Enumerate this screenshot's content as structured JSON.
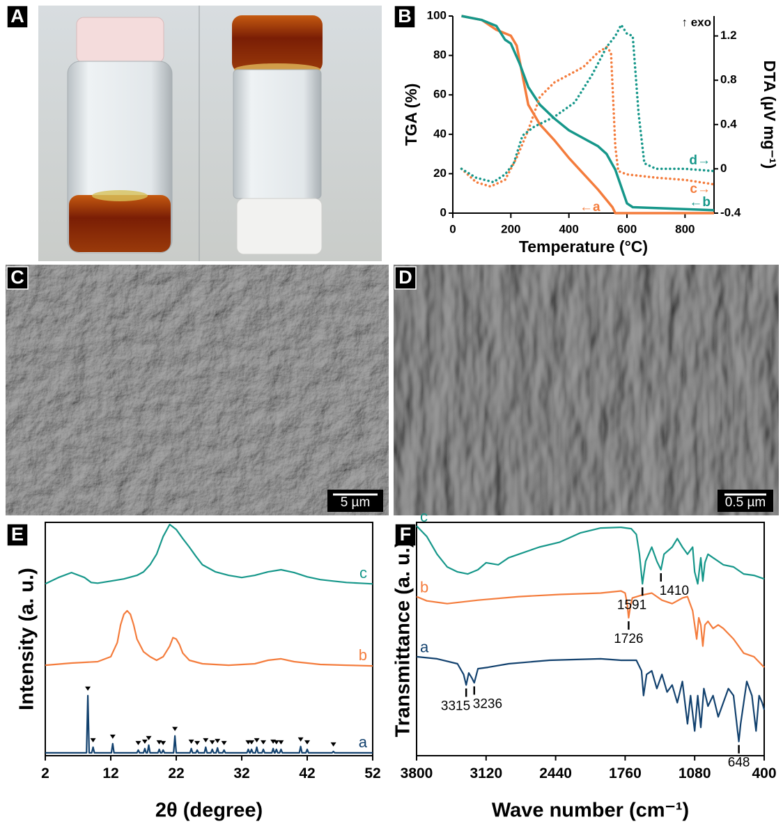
{
  "panels": [
    {
      "label": "A"
    },
    {
      "label": "C",
      "scale_bar": "5 µm"
    },
    {
      "label": "D",
      "scale_bar": "0.5 µm"
    }
  ],
  "chart_data": [
    {
      "type": "line",
      "panel_label": "B",
      "xlabel": "Temperature (°C)",
      "ylabel": "TGA (%)",
      "y2label": "DTA (µV mg⁻¹)",
      "annotation": "↑ exo",
      "xlim": [
        0,
        900
      ],
      "xticks": [
        0,
        200,
        400,
        600,
        800
      ],
      "ylim": [
        0,
        100
      ],
      "yticks": [
        0,
        20,
        40,
        60,
        80,
        100
      ],
      "y2lim": [
        -0.4,
        1.38
      ],
      "y2ticks": [
        -0.4,
        0,
        0.4,
        0.8,
        1.2
      ],
      "series": [
        {
          "name": "←a",
          "color": "#f47c3c",
          "x": [
            30,
            100,
            150,
            200,
            220,
            240,
            260,
            300,
            350,
            400,
            450,
            500,
            550,
            560,
            900
          ],
          "values": [
            100,
            98,
            93,
            90,
            85,
            70,
            55,
            45,
            37,
            28,
            20,
            12,
            3,
            0,
            0
          ]
        },
        {
          "name": "←b",
          "color": "#16978a",
          "x": [
            30,
            100,
            150,
            180,
            200,
            230,
            260,
            300,
            350,
            400,
            450,
            500,
            530,
            560,
            600,
            620,
            900
          ],
          "values": [
            100,
            98,
            95,
            88,
            86,
            76,
            64,
            55,
            48,
            42,
            38,
            34,
            30,
            22,
            5,
            3,
            1.5
          ]
        },
        {
          "name": "c→",
          "color": "#f47c3c",
          "axis": "y2",
          "dash": "dotted",
          "x": [
            30,
            80,
            130,
            180,
            220,
            260,
            300,
            350,
            400,
            450,
            500,
            530,
            545,
            560,
            570,
            600,
            700,
            800,
            900
          ],
          "values": [
            0,
            -0.12,
            -0.16,
            -0.1,
            0.1,
            0.35,
            0.65,
            0.78,
            0.85,
            0.92,
            1.05,
            1.1,
            1.05,
            0.2,
            -0.02,
            -0.05,
            -0.08,
            -0.1,
            -0.14
          ]
        },
        {
          "name": "d→",
          "color": "#16978a",
          "axis": "y2",
          "dash": "dotted",
          "x": [
            30,
            80,
            140,
            180,
            210,
            240,
            280,
            350,
            420,
            480,
            530,
            560,
            580,
            600,
            620,
            640,
            660,
            700,
            800,
            900
          ],
          "values": [
            0,
            -0.08,
            -0.12,
            -0.05,
            0.05,
            0.3,
            0.38,
            0.47,
            0.6,
            0.85,
            1.1,
            1.2,
            1.3,
            1.22,
            1.2,
            0.5,
            0.05,
            0,
            0,
            -0.02
          ]
        }
      ]
    },
    {
      "type": "line",
      "panel_label": "E",
      "xlabel": "2θ (degree)",
      "ylabel": "Intensity (a. u.)",
      "xlim": [
        2,
        52
      ],
      "xticks": [
        2,
        12,
        22,
        32,
        42,
        52
      ],
      "ylim": [
        0,
        330
      ],
      "series": [
        {
          "name": "a",
          "color": "#12416e",
          "x": [
            2,
            8.3,
            8.5,
            8.7,
            9.1,
            9.3,
            9.5,
            12.1,
            12.3,
            12.5,
            16,
            16.2,
            16.4,
            17,
            17.2,
            17.4,
            17.6,
            17.8,
            18,
            19.2,
            19.4,
            19.6,
            19.8,
            20,
            20.2,
            21.6,
            21.8,
            22,
            24.1,
            24.3,
            24.5,
            25,
            25.2,
            25.4,
            26.3,
            26.5,
            26.7,
            27.3,
            27.5,
            27.7,
            28.1,
            28.3,
            28.5,
            29.1,
            29.3,
            29.5,
            32.8,
            33,
            33.2,
            33.3,
            33.5,
            33.7,
            34.1,
            34.3,
            34.5,
            35.1,
            35.3,
            35.5,
            36.6,
            36.8,
            37,
            37.1,
            37.3,
            37.5,
            37.8,
            38,
            38.2,
            40.8,
            41,
            41.2,
            41.8,
            42,
            42.2,
            45.8,
            46,
            46.2,
            52
          ],
          "values": [
            4,
            4,
            85,
            4,
            4,
            12,
            4,
            4,
            17,
            4,
            4,
            8,
            4,
            4,
            10,
            4,
            4,
            15,
            4,
            4,
            9,
            4,
            4,
            8,
            4,
            4,
            28,
            4,
            4,
            10,
            4,
            4,
            8,
            4,
            4,
            12,
            4,
            4,
            9,
            4,
            4,
            11,
            4,
            4,
            8,
            4,
            4,
            9,
            4,
            4,
            9,
            4,
            4,
            12,
            4,
            4,
            9,
            4,
            4,
            10,
            4,
            4,
            9,
            4,
            4,
            9,
            4,
            4,
            13,
            4,
            4,
            9,
            4,
            4,
            6,
            4,
            4
          ],
          "peak_markers": [
            8.5,
            9.3,
            12.3,
            16.2,
            17.2,
            17.8,
            19.4,
            20,
            21.8,
            24.3,
            25.2,
            26.5,
            27.5,
            28.3,
            29.3,
            33,
            33.5,
            34.3,
            35.3,
            36.8,
            37.3,
            38,
            41,
            42,
            46
          ]
        },
        {
          "name": "b",
          "color": "#f47c3c",
          "x": [
            2,
            6,
            10,
            12,
            13,
            13.5,
            14,
            14.5,
            15,
            15.5,
            16,
            17,
            18,
            19,
            20,
            21,
            21.5,
            22,
            22.5,
            23,
            24,
            26,
            30,
            34,
            36,
            38,
            40,
            44,
            48,
            52
          ],
          "values": [
            128,
            131,
            133,
            140,
            160,
            185,
            200,
            205,
            200,
            185,
            165,
            147,
            140,
            135,
            140,
            155,
            167,
            165,
            157,
            145,
            135,
            130,
            128,
            130,
            135,
            137,
            133,
            129,
            128,
            127
          ]
        },
        {
          "name": "c",
          "color": "#16978a",
          "x": [
            2,
            4,
            6,
            8,
            9,
            10,
            12,
            14,
            16,
            17,
            18,
            19,
            20,
            21,
            22,
            23,
            24,
            25,
            26,
            28,
            30,
            32,
            34,
            36,
            38,
            40,
            42,
            44,
            46,
            48,
            50,
            52
          ],
          "values": [
            243,
            252,
            259,
            252,
            245,
            244,
            247,
            250,
            255,
            260,
            270,
            285,
            310,
            327,
            320,
            307,
            295,
            282,
            270,
            260,
            255,
            252,
            255,
            260,
            263,
            259,
            253,
            249,
            247,
            245,
            244,
            243
          ]
        }
      ]
    },
    {
      "type": "line",
      "panel_label": "F",
      "xlabel": "Wave number (cm⁻¹)",
      "ylabel": "Transmittance (a. u.)",
      "xlim": [
        3800,
        400
      ],
      "xticks": [
        3800,
        3120,
        2440,
        1760,
        1080,
        400
      ],
      "ylim": [
        0,
        330
      ],
      "series": [
        {
          "name": "a",
          "color": "#12416e",
          "peaks": [
            3315,
            3236,
            648
          ],
          "x": [
            3800,
            3600,
            3400,
            3340,
            3315,
            3290,
            3260,
            3236,
            3200,
            3100,
            2900,
            2500,
            2000,
            1800,
            1650,
            1600,
            1580,
            1550,
            1500,
            1450,
            1400,
            1350,
            1300,
            1250,
            1200,
            1150,
            1120,
            1080,
            1050,
            1020,
            990,
            950,
            900,
            850,
            800,
            750,
            700,
            660,
            648,
            630,
            570,
            520,
            480,
            450,
            420,
            400
          ],
          "values": [
            140,
            137,
            130,
            115,
            100,
            117,
            110,
            103,
            123,
            125,
            130,
            135,
            137,
            135,
            135,
            120,
            85,
            115,
            120,
            95,
            115,
            90,
            100,
            75,
            105,
            45,
            85,
            35,
            85,
            40,
            95,
            70,
            85,
            55,
            75,
            95,
            85,
            35,
            20,
            45,
            105,
            85,
            35,
            85,
            75,
            65
          ]
        },
        {
          "name": "b",
          "color": "#f47c3c",
          "peaks": [
            1726
          ],
          "x": [
            3800,
            3700,
            3500,
            3200,
            2800,
            2400,
            2000,
            1800,
            1760,
            1740,
            1726,
            1710,
            1690,
            1600,
            1500,
            1400,
            1300,
            1200,
            1150,
            1100,
            1080,
            1060,
            1040,
            1020,
            1000,
            980,
            950,
            900,
            850,
            800,
            700,
            600,
            500,
            400
          ],
          "values": [
            225,
            219,
            215,
            220,
            225,
            228,
            230,
            233,
            230,
            215,
            195,
            210,
            223,
            227,
            230,
            220,
            215,
            223,
            225,
            205,
            185,
            165,
            195,
            185,
            155,
            185,
            190,
            180,
            185,
            180,
            165,
            145,
            140,
            125
          ]
        },
        {
          "name": "c",
          "color": "#16978a",
          "peaks": [
            1591,
            1410
          ],
          "x": [
            3800,
            3700,
            3600,
            3500,
            3400,
            3300,
            3200,
            3120,
            3000,
            2900,
            2800,
            2600,
            2400,
            2200,
            2000,
            1800,
            1700,
            1650,
            1620,
            1591,
            1560,
            1500,
            1450,
            1410,
            1380,
            1300,
            1250,
            1200,
            1150,
            1100,
            1080,
            1050,
            1020,
            1000,
            980,
            950,
            900,
            850,
            800,
            700,
            600,
            500,
            400
          ],
          "values": [
            325,
            310,
            285,
            267,
            260,
            257,
            263,
            273,
            270,
            280,
            285,
            295,
            302,
            315,
            322,
            323,
            321,
            313,
            285,
            243,
            275,
            295,
            275,
            263,
            285,
            295,
            307,
            295,
            285,
            295,
            260,
            243,
            280,
            247,
            273,
            285,
            280,
            275,
            270,
            267,
            257,
            255,
            250
          ]
        }
      ]
    }
  ]
}
